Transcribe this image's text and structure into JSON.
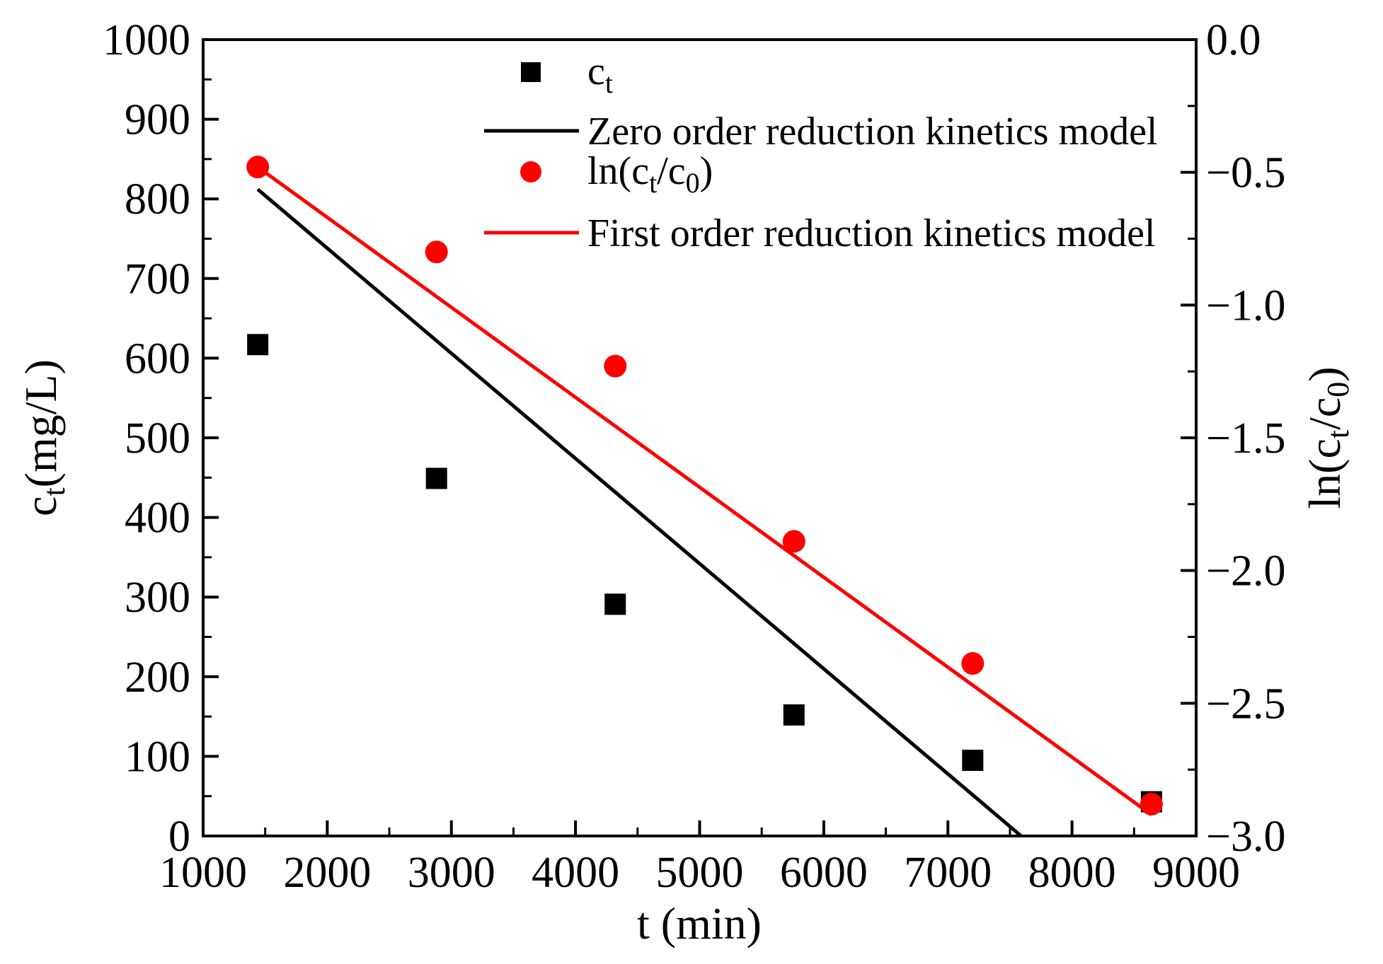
{
  "chart_data": {
    "type": "scatter",
    "x_axis": {
      "label": "t (min)",
      "range": [
        1000,
        9000
      ],
      "ticks": [
        1000,
        2000,
        3000,
        4000,
        5000,
        6000,
        7000,
        8000,
        9000
      ],
      "tick_labels": [
        "1000",
        "2000",
        "3000",
        "4000",
        "5000",
        "6000",
        "7000",
        "8000",
        "9000"
      ]
    },
    "y_axis_left": {
      "label_main": "c",
      "label_sub": "t",
      "label_rest": "(mg/L)",
      "range": [
        0,
        1000
      ],
      "ticks": [
        0,
        100,
        200,
        300,
        400,
        500,
        600,
        700,
        800,
        900,
        1000
      ],
      "tick_labels": [
        "0",
        "100",
        "200",
        "300",
        "400",
        "500",
        "600",
        "700",
        "800",
        "900",
        "1000"
      ]
    },
    "y_axis_right": {
      "label_prefix": "ln(c",
      "label_sub1": "t",
      "label_mid": "/c",
      "label_sub2": "0",
      "label_suffix": ")",
      "range": [
        -3.0,
        0.0
      ],
      "ticks": [
        -3.0,
        -2.5,
        -2.0,
        -1.5,
        -1.0,
        -0.5,
        0.0
      ],
      "tick_labels": [
        "−3.0",
        "−2.5",
        "−2.0",
        "−1.5",
        "−1.0",
        "−0.5",
        "0.0"
      ]
    },
    "series": [
      {
        "key": "ct",
        "legend_main": "c",
        "legend_sub": "t",
        "kind": "scatter",
        "marker": "square",
        "color": "#000000",
        "axis": "left",
        "x": [
          1440,
          2880,
          4320,
          5760,
          7200,
          8640
        ],
        "y": [
          617,
          449,
          291,
          152,
          95,
          43
        ]
      },
      {
        "key": "zero_order",
        "legend": "Zero order reduction kinetics model",
        "kind": "line",
        "color": "#000000",
        "axis": "left",
        "x": [
          1440,
          7590
        ],
        "y": [
          812,
          0
        ]
      },
      {
        "key": "ln_ct_c0",
        "legend_prefix": "ln(c",
        "legend_sub1": "t",
        "legend_mid": "/c",
        "legend_sub2": "0",
        "legend_suffix": ")",
        "kind": "scatter",
        "marker": "circle",
        "color": "#ff0000",
        "axis": "right",
        "x": [
          1440,
          2880,
          4320,
          5760,
          7200,
          8640
        ],
        "y": [
          -0.48,
          -0.8,
          -1.23,
          -1.89,
          -2.35,
          -2.88
        ]
      },
      {
        "key": "first_order",
        "legend": "First order reduction kinetics model",
        "kind": "line",
        "color": "#ff0000",
        "axis": "right",
        "x": [
          1440,
          8640
        ],
        "y": [
          -0.48,
          -2.92
        ]
      }
    ],
    "legend_position": "top-right",
    "grid": false
  }
}
